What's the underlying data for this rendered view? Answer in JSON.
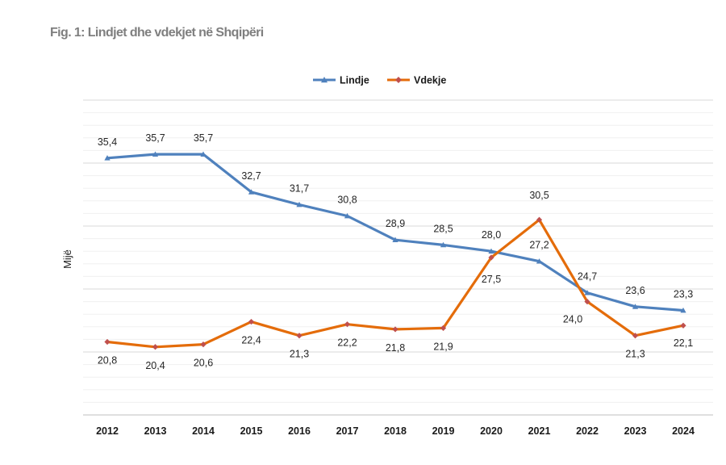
{
  "figure": {
    "title": "Fig. 1: Lindjet dhe vdekjet në Shqipëri"
  },
  "chart_data": {
    "type": "line",
    "title": "Fig. 1: Lindjet dhe vdekjet në Shqipëri",
    "xlabel": "",
    "ylabel": "Mijë",
    "categories": [
      "2012",
      "2013",
      "2014",
      "2015",
      "2016",
      "2017",
      "2018",
      "2019",
      "2020",
      "2021",
      "2022",
      "2023",
      "2024"
    ],
    "series": [
      {
        "name": "Lindje",
        "color": "#4f81bd",
        "marker": "triangle",
        "values": [
          35.4,
          35.7,
          35.7,
          32.7,
          31.7,
          30.8,
          28.9,
          28.5,
          28.0,
          27.2,
          24.7,
          23.6,
          23.3
        ],
        "labels": [
          "35,4",
          "35,7",
          "35,7",
          "32,7",
          "31,7",
          "30,8",
          "28,9",
          "28,5",
          "28,0",
          "27,2",
          "24,7",
          "23,6",
          "23,3"
        ]
      },
      {
        "name": "Vdekje",
        "color": "#e46c0a",
        "marker": "diamond",
        "values": [
          20.8,
          20.4,
          20.6,
          22.4,
          21.3,
          22.2,
          21.8,
          21.9,
          27.5,
          30.5,
          24.0,
          21.3,
          22.1
        ],
        "labels": [
          "20,8",
          "20,4",
          "20,6",
          "22,4",
          "21,3",
          "22,2",
          "21,8",
          "21,9",
          "27,5",
          "30,5",
          "24,0",
          "21,3",
          "22,1"
        ]
      }
    ],
    "ylim": [
      15,
      40
    ],
    "grid": true,
    "legend": "top-center"
  }
}
